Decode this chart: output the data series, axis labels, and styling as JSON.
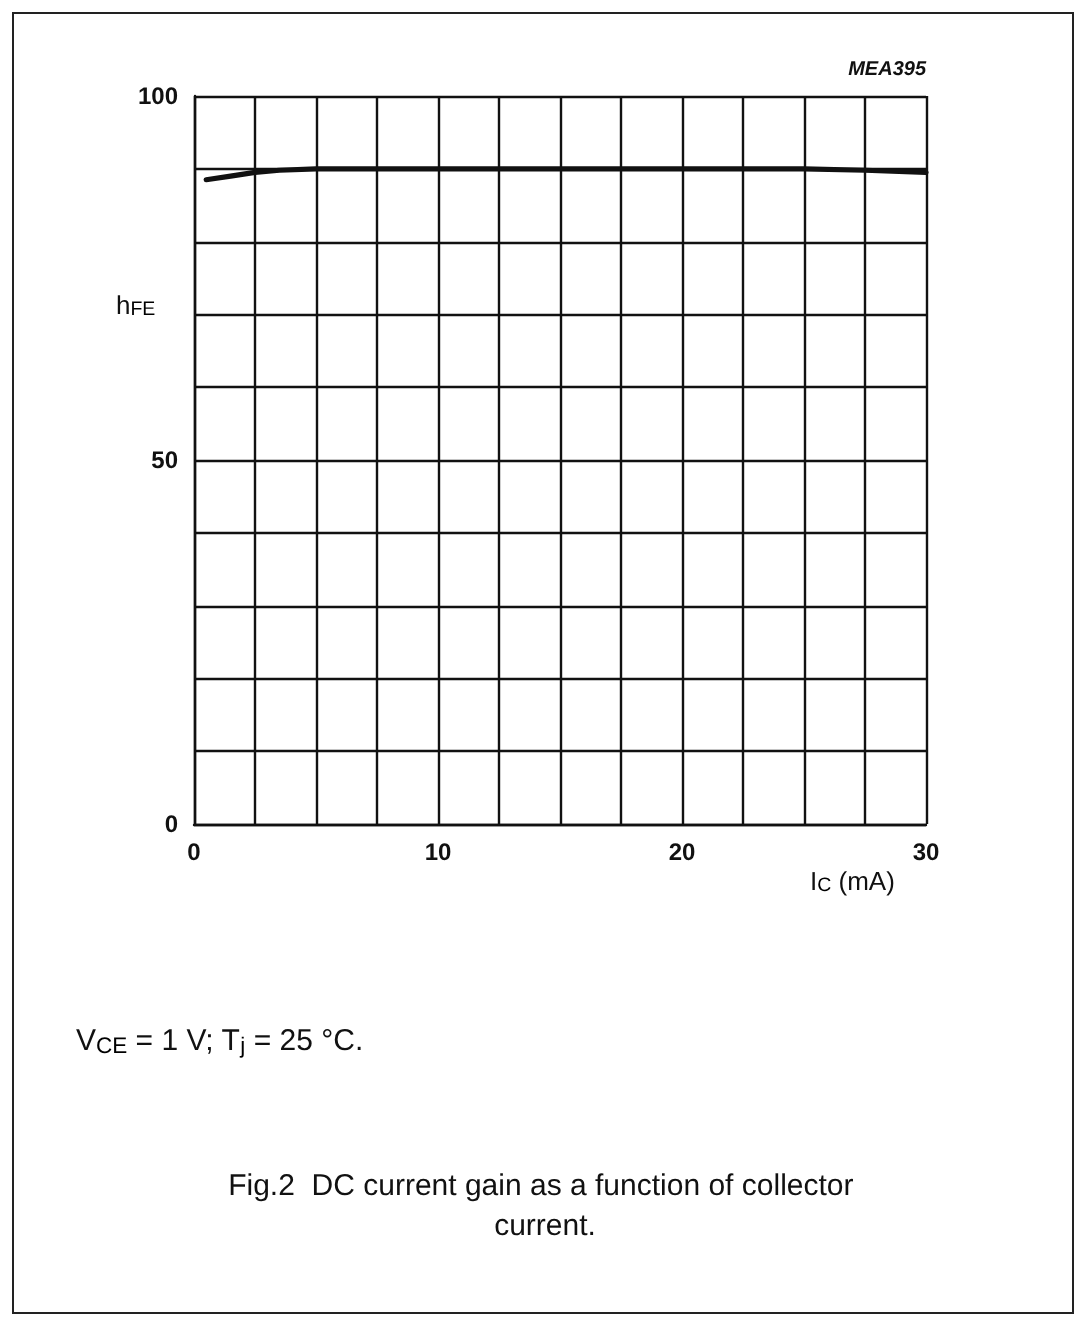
{
  "chart_data": {
    "type": "line",
    "title": "Fig.2  DC current gain as a function of collector current.",
    "xlabel": "I$_{C}$ (mA)",
    "ylabel": "h$_{FE}$",
    "annotations": [
      "MEA395",
      "V$_{CE}$ = 1 V; T$_{j}$ = 25 °C."
    ],
    "x": [
      0.5,
      1.5,
      2.5,
      3.5,
      5,
      7.5,
      10,
      15,
      20,
      25,
      27.5,
      30
    ],
    "series": [
      {
        "color": "#111111",
        "values": [
          88.5,
          89,
          89.5,
          89.8,
          90,
          90,
          90,
          90,
          90,
          90,
          89.8,
          89.5
        ]
      }
    ],
    "xlim": [
      0,
      30
    ],
    "xticks": [
      0,
      {
        "value": 2.5,
        "label": null
      },
      {
        "value": 5,
        "label": null
      },
      {
        "value": 7.5,
        "label": null
      },
      10,
      {
        "value": 12.5,
        "label": null
      },
      {
        "value": 15,
        "label": null
      },
      {
        "value": 17.5,
        "label": null
      },
      20,
      {
        "value": 22.5,
        "label": null
      },
      {
        "value": 25,
        "label": null
      },
      {
        "value": 27.5,
        "label": null
      },
      30
    ],
    "ylim": [
      0,
      100
    ],
    "yticks": [
      0,
      {
        "value": 10,
        "label": null
      },
      {
        "value": 20,
        "label": null
      },
      {
        "value": 30,
        "label": null
      },
      {
        "value": 40,
        "label": null
      },
      50,
      {
        "value": 60,
        "label": null
      },
      {
        "value": 70,
        "label": null
      },
      {
        "value": 80,
        "label": null
      },
      {
        "value": 90,
        "label": null
      },
      100
    ],
    "grid": true,
    "marker": "none",
    "line_style": "solid"
  }
}
